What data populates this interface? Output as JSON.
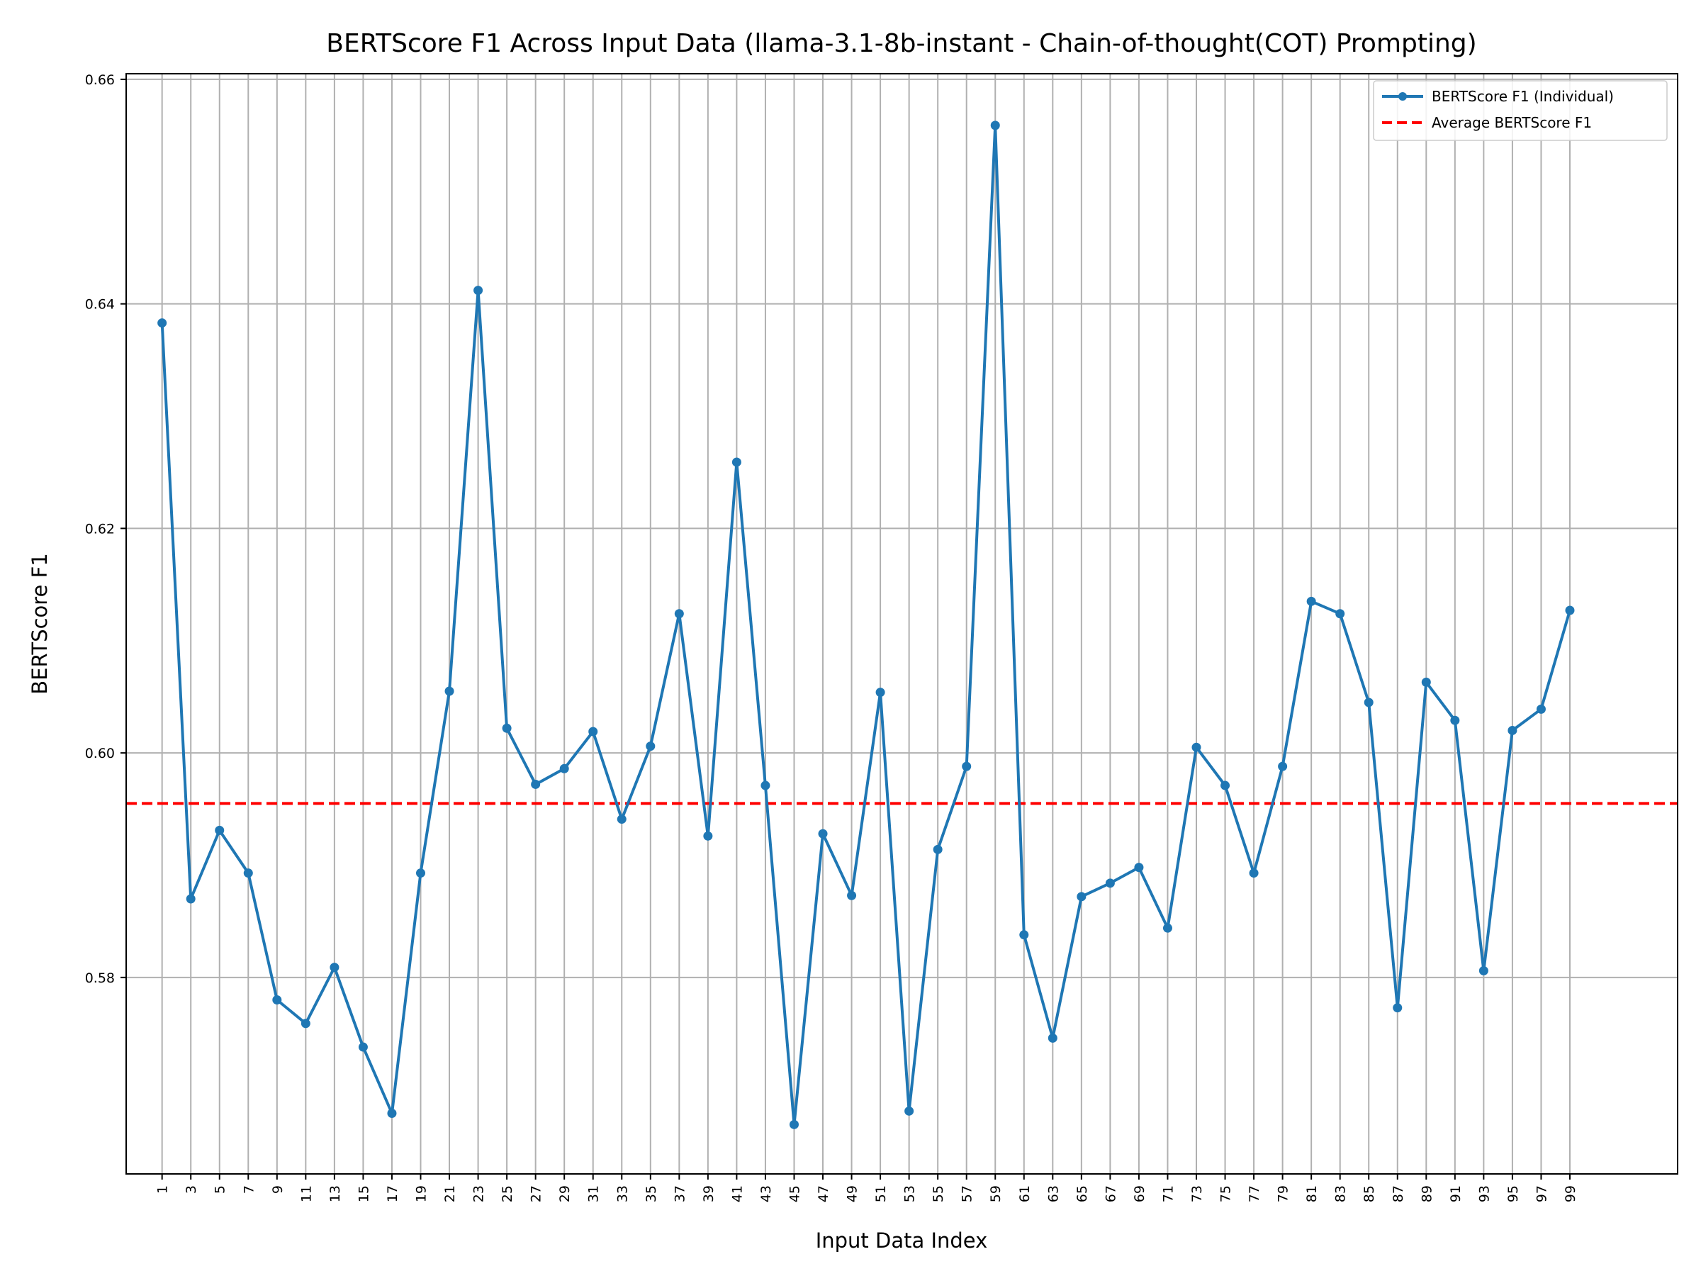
{
  "chart_data": {
    "type": "line",
    "title": "BERTScore F1 Across Input Data (llama-3.1-8b-instant - Chain-of-thought(COT) Prompting)",
    "xlabel": "Input Data Index",
    "ylabel": "BERTScore F1",
    "xlim": [
      -1.5,
      106.5
    ],
    "ylim": [
      0.5625,
      0.6605
    ],
    "x_ticks": [
      "1",
      "3",
      "5",
      "7",
      "9",
      "11",
      "13",
      "15",
      "17",
      "19",
      "21",
      "23",
      "25",
      "27",
      "29",
      "31",
      "33",
      "35",
      "37",
      "39",
      "41",
      "43",
      "45",
      "47",
      "49",
      "51",
      "53",
      "55",
      "57",
      "59",
      "61",
      "63",
      "65",
      "67",
      "69",
      "71",
      "73",
      "75",
      "77",
      "79",
      "81",
      "83",
      "85",
      "87",
      "89",
      "91",
      "93",
      "95",
      "97",
      "99"
    ],
    "y_ticks": [
      "0.58",
      "0.60",
      "0.62",
      "0.64",
      "0.66"
    ],
    "grid": true,
    "legend_position": "upper right",
    "series": [
      {
        "name": "BERTScore F1 (Individual)",
        "color": "#1f77b4",
        "style": "solid-with-markers",
        "x": [
          1,
          3,
          5,
          7,
          9,
          11,
          13,
          15,
          17,
          19,
          21,
          23,
          25,
          27,
          29,
          31,
          33,
          35,
          37,
          39,
          41,
          43,
          45,
          47,
          49,
          51,
          53,
          55,
          57,
          59,
          61,
          63,
          65,
          67,
          69,
          71,
          73,
          75,
          77,
          79,
          81,
          83,
          85,
          87,
          89,
          91,
          93,
          95,
          97,
          99
        ],
        "values": [
          0.6383,
          0.587,
          0.5931,
          0.5893,
          0.578,
          0.5759,
          0.5809,
          0.5738,
          0.5679,
          0.5893,
          0.6055,
          0.6412,
          0.6022,
          0.5972,
          0.5986,
          0.6019,
          0.5941,
          0.6006,
          0.6124,
          0.5926,
          0.6259,
          0.5971,
          0.5669,
          0.5928,
          0.5873,
          0.6054,
          0.5681,
          0.5914,
          0.5988,
          0.6559,
          0.5838,
          0.5746,
          0.5872,
          0.5884,
          0.5898,
          0.5844,
          0.6005,
          0.5971,
          0.5893,
          0.5988,
          0.6135,
          0.6124,
          0.6045,
          0.5773,
          0.6063,
          0.6029,
          0.5806,
          0.602,
          0.6039,
          0.6127
        ]
      },
      {
        "name": "Average BERTScore F1",
        "color": "#ff0000",
        "style": "dashed",
        "y": 0.5955
      }
    ]
  }
}
